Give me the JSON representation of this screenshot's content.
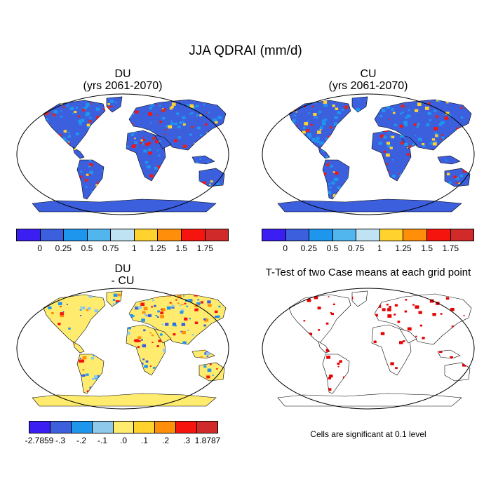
{
  "title": "JJA QDRAI (mm/d)",
  "panels": {
    "du": {
      "title": "DU",
      "subtitle": "(yrs 2061-2070)"
    },
    "cu": {
      "title": "CU",
      "subtitle": "(yrs 2061-2070)"
    },
    "diff": {
      "title": "DU",
      "subtitle": "- CU"
    },
    "ttest": {
      "title": "T-Test of two Case means at each grid point"
    }
  },
  "colorbar_abs": {
    "colors": [
      "#3a1ef2",
      "#3c5fde",
      "#1e96ee",
      "#52b6ee",
      "#bfe3f2",
      "#ffd22e",
      "#ff8e0a",
      "#f5140e",
      "#d02a2a"
    ],
    "labels": [
      "0",
      "0.25",
      "0.5",
      "0.75",
      "1",
      "1.25",
      "1.5",
      "1.75"
    ]
  },
  "colorbar_diff": {
    "colors": [
      "#3a1ef2",
      "#3c5fde",
      "#1e96ee",
      "#8ec9ec",
      "#ffec6e",
      "#ffd22e",
      "#ff8e0a",
      "#f5140e",
      "#d02a2a"
    ],
    "labels": [
      "-2.7859",
      "-.3",
      "-.2",
      "-.1",
      ".0",
      ".1",
      ".2",
      ".3",
      "1.8787"
    ]
  },
  "map_colors": {
    "ocean": "#ffffff",
    "land_abs": "#3c5fde",
    "land_diff": "#ffec6e",
    "significant": "#e60000"
  },
  "footnote": "Cells are significant at 0.1 level"
}
